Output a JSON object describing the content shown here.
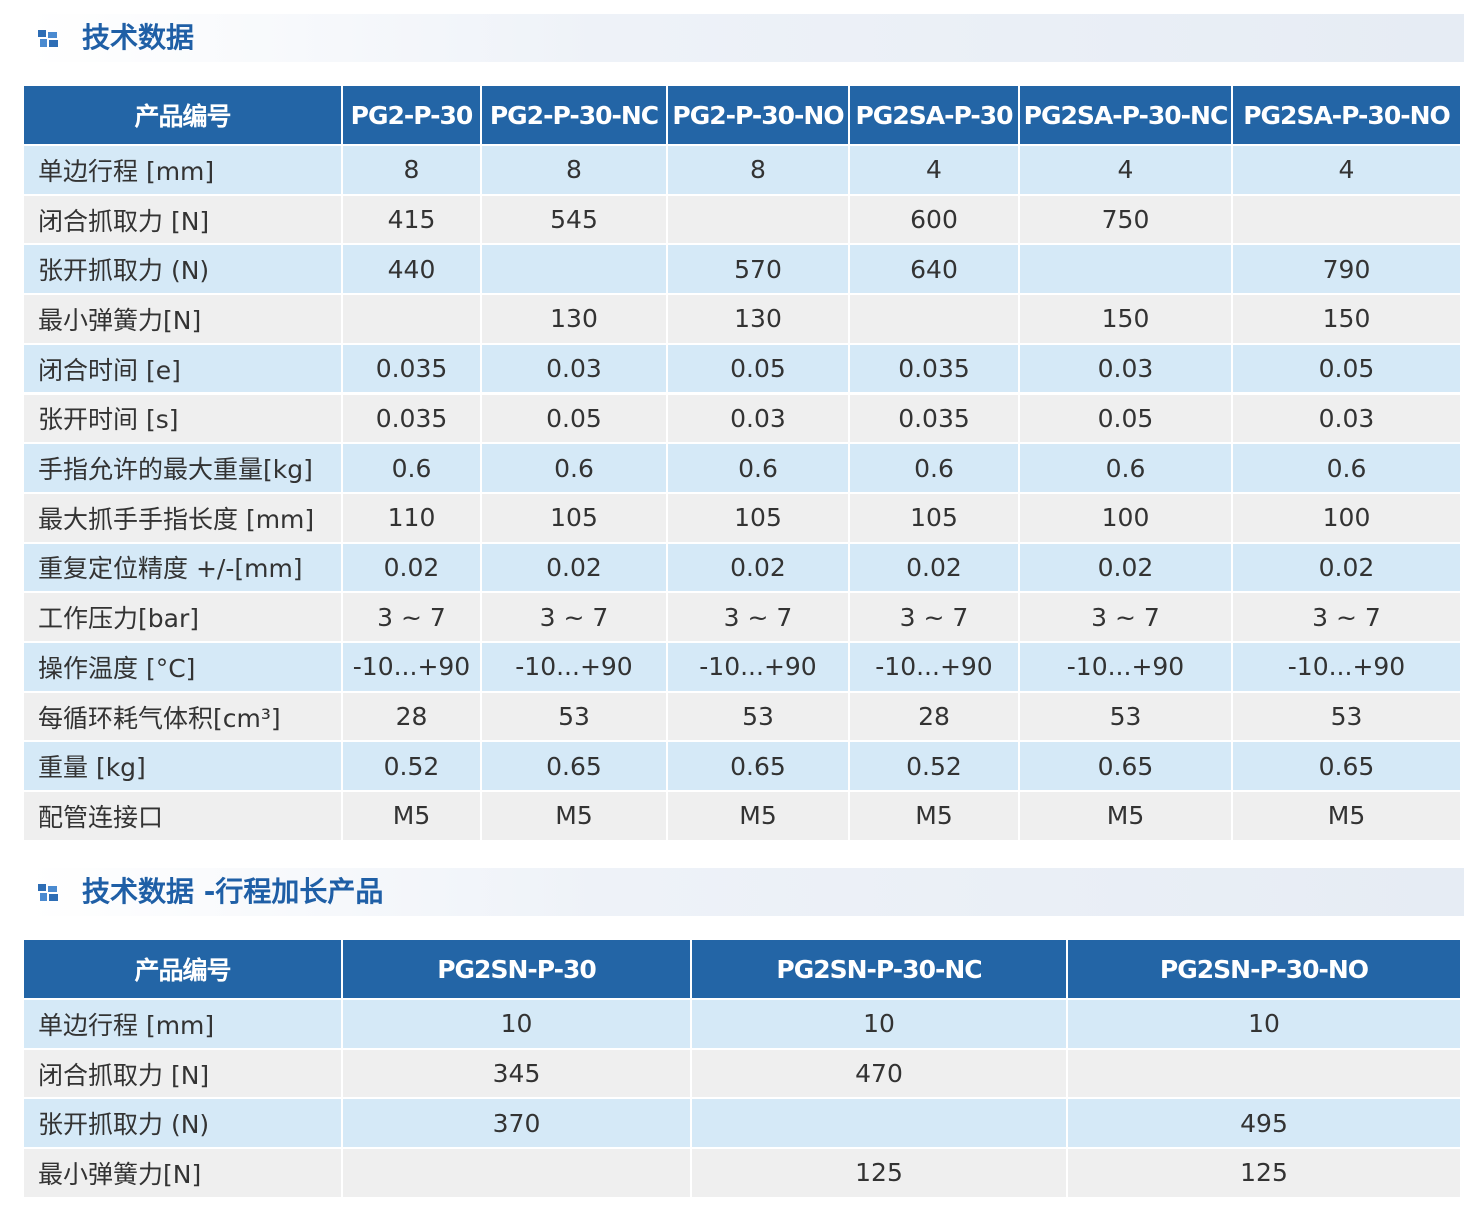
{
  "sections": [
    {
      "title": "技术数据",
      "table": {
        "header": [
          "产品编号",
          "PG2-P-30",
          "PG2-P-30-NC",
          "PG2-P-30-NO",
          "PG2SA-P-30",
          "PG2SA-P-30-NC",
          "PG2SA-P-30-NO"
        ],
        "rows": [
          [
            "单边行程 [mm]",
            "8",
            "8",
            "8",
            "4",
            "4",
            "4"
          ],
          [
            "闭合抓取力 [N]",
            "415",
            "545",
            null,
            "600",
            "750",
            null
          ],
          [
            "张开抓取力 (N)",
            "440",
            null,
            "570",
            "640",
            null,
            "790"
          ],
          [
            "最小弹簧力[N]",
            null,
            "130",
            "130",
            null,
            "150",
            "150"
          ],
          [
            "闭合时间 [e]",
            "0.035",
            "0.03",
            "0.05",
            "0.035",
            "0.03",
            "0.05"
          ],
          [
            "张开时间 [s]",
            "0.035",
            "0.05",
            "0.03",
            "0.035",
            "0.05",
            "0.03"
          ],
          [
            "手指允许的最大重量[kg]",
            "0.6",
            "0.6",
            "0.6",
            "0.6",
            "0.6",
            "0.6"
          ],
          [
            "最大抓手手指长度 [mm]",
            "110",
            "105",
            "105",
            "105",
            "100",
            "100"
          ],
          [
            "重复定位精度 +/-[mm]",
            "0.02",
            "0.02",
            "0.02",
            "0.02",
            "0.02",
            "0.02"
          ],
          [
            "工作压力[bar]",
            "3 ~ 7",
            "3 ~ 7",
            "3 ~ 7",
            "3 ~ 7",
            "3 ~ 7",
            "3 ~ 7"
          ],
          [
            "操作温度 [°C]",
            "-10...+90",
            "-10...+90",
            "-10...+90",
            "-10...+90",
            "-10...+90",
            "-10...+90"
          ],
          [
            "每循环耗气体积[cm³]",
            "28",
            "53",
            "53",
            "28",
            "53",
            "53"
          ],
          [
            "重量 [kg]",
            "0.52",
            "0.65",
            "0.65",
            "0.52",
            "0.65",
            "0.65"
          ],
          [
            "配管连接口",
            "M5",
            "M5",
            "M5",
            "M5",
            "M5",
            "M5"
          ]
        ]
      }
    },
    {
      "title": "技术数据 -行程加长产品",
      "table": {
        "header": [
          "产品编号",
          "PG2SN-P-30",
          "PG2SN-P-30-NC",
          "PG2SN-P-30-NO"
        ],
        "rows": [
          [
            "单边行程 [mm]",
            "10",
            "10",
            "10"
          ],
          [
            "闭合抓取力 [N]",
            "345",
            "470",
            null
          ],
          [
            "张开抓取力 (N)",
            "370",
            null,
            "495"
          ],
          [
            "最小弹簧力[N]",
            null,
            "125",
            "125"
          ]
        ]
      }
    }
  ]
}
